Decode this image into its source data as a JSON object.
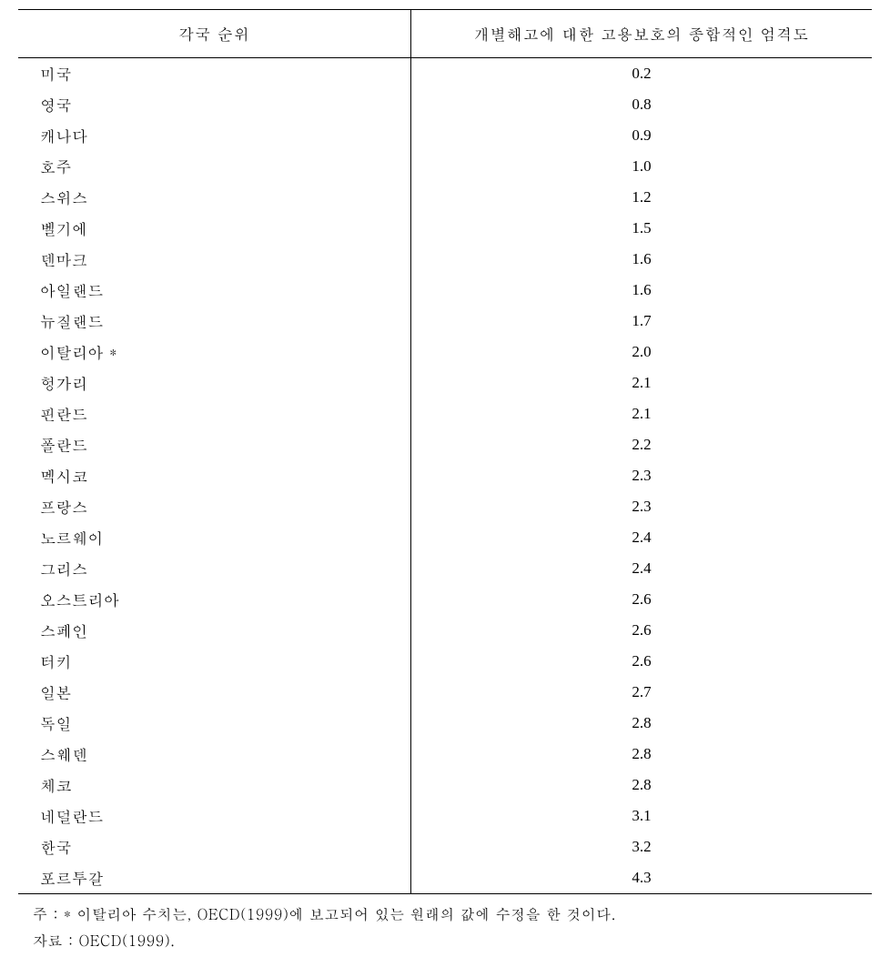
{
  "table": {
    "type": "table",
    "columns": [
      {
        "key": "country",
        "label": "각국 순위",
        "align": "left",
        "width_pct": 46
      },
      {
        "key": "value",
        "label": "개별해고에 대한 고용보호의 종합적인 엄격도",
        "align": "center",
        "width_pct": 54
      }
    ],
    "rows": [
      {
        "country": "미국",
        "value": "0.2"
      },
      {
        "country": "영국",
        "value": "0.8"
      },
      {
        "country": "캐나다",
        "value": "0.9"
      },
      {
        "country": "호주",
        "value": "1.0"
      },
      {
        "country": "스위스",
        "value": "1.2"
      },
      {
        "country": "벨기에",
        "value": "1.5"
      },
      {
        "country": "덴마크",
        "value": "1.6"
      },
      {
        "country": "아일랜드",
        "value": "1.6"
      },
      {
        "country": "뉴질랜드",
        "value": "1.7"
      },
      {
        "country": "이탈리아 *",
        "value": "2.0"
      },
      {
        "country": "헝가리",
        "value": "2.1"
      },
      {
        "country": "핀란드",
        "value": "2.1"
      },
      {
        "country": "폴란드",
        "value": "2.2"
      },
      {
        "country": "멕시코",
        "value": "2.3"
      },
      {
        "country": "프랑스",
        "value": "2.3"
      },
      {
        "country": "노르웨이",
        "value": "2.4"
      },
      {
        "country": "그리스",
        "value": "2.4"
      },
      {
        "country": "오스트리아",
        "value": "2.6"
      },
      {
        "country": "스페인",
        "value": "2.6"
      },
      {
        "country": "터키",
        "value": "2.6"
      },
      {
        "country": "일본",
        "value": "2.7"
      },
      {
        "country": "독일",
        "value": "2.8"
      },
      {
        "country": "스웨덴",
        "value": "2.8"
      },
      {
        "country": "체코",
        "value": "2.8"
      },
      {
        "country": "네덜란드",
        "value": "3.1"
      },
      {
        "country": "한국",
        "value": "3.2"
      },
      {
        "country": "포르투갈",
        "value": "4.3"
      }
    ],
    "border_color": "#000000",
    "background_color": "#ffffff",
    "header_fontsize": 17,
    "body_fontsize": 17
  },
  "footnotes": {
    "note": "주 : * 이탈리아 수치는, OECD(1999)에 보고되어 있는 원래의 값에 수정을 한 것이다.",
    "source": "자료 : OECD(1999)."
  }
}
